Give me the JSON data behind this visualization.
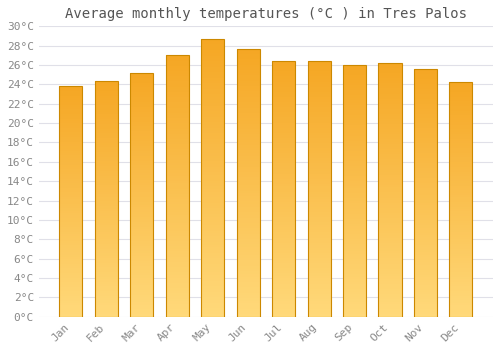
{
  "title": "Average monthly temperatures (°C ) in Tres Palos",
  "months": [
    "Jan",
    "Feb",
    "Mar",
    "Apr",
    "May",
    "Jun",
    "Jul",
    "Aug",
    "Sep",
    "Oct",
    "Nov",
    "Dec"
  ],
  "values": [
    23.8,
    24.3,
    25.2,
    27.0,
    28.7,
    27.7,
    26.4,
    26.4,
    26.0,
    26.2,
    25.6,
    24.2
  ],
  "bar_color_dark": "#F5A623",
  "bar_color_light": "#FFD97A",
  "bar_edge_color": "#CC8800",
  "ylim": [
    0,
    30
  ],
  "ytick_step": 2,
  "background_color": "#ffffff",
  "grid_color": "#e0e0e8",
  "title_fontsize": 10,
  "tick_fontsize": 8,
  "font_family": "monospace",
  "tick_color": "#888888",
  "title_color": "#555555"
}
